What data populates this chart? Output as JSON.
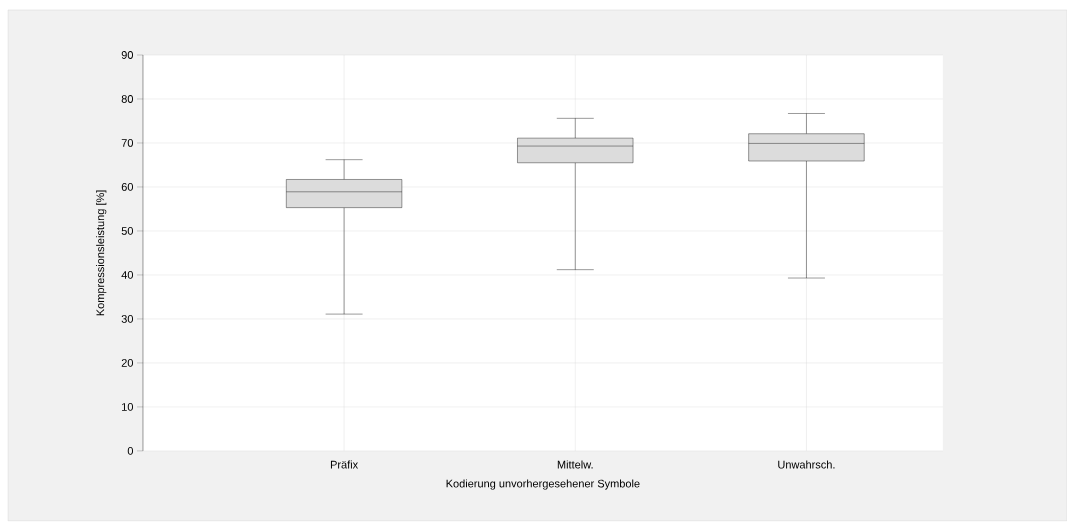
{
  "chart_data": {
    "type": "box",
    "xlabel": "Kodierung unvorhergesehener Symbole",
    "ylabel": "Kompressionsleistung [%]",
    "categories": [
      "Präfix",
      "Mittelw.",
      "Unwahrsch."
    ],
    "boxes": [
      {
        "low": 31.1,
        "q1": 55.3,
        "median": 58.9,
        "q3": 61.7,
        "high": 66.2
      },
      {
        "low": 41.2,
        "q1": 65.5,
        "median": 69.3,
        "q3": 71.1,
        "high": 75.6
      },
      {
        "low": 39.3,
        "q1": 65.9,
        "median": 69.9,
        "q3": 72.1,
        "high": 76.7
      }
    ],
    "color": "#dcdcdc",
    "ylim": [
      0,
      90
    ],
    "yticks": [
      0,
      10,
      20,
      30,
      40,
      50,
      60,
      70,
      80,
      90
    ],
    "grid": true
  }
}
